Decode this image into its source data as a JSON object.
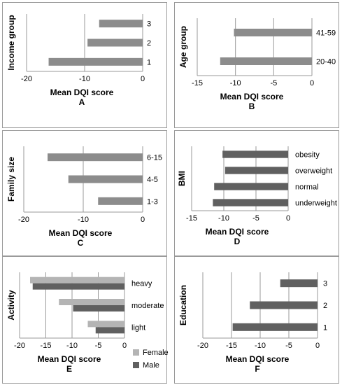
{
  "chart_data": [
    {
      "panel": "A",
      "type": "bar",
      "orientation": "horizontal",
      "ylabel": "Income group",
      "xlabel": "Mean DQI score",
      "categories": [
        "3",
        "2",
        "1"
      ],
      "series": [
        {
          "values": [
            -7.5,
            -9.5,
            -16.2
          ],
          "color": "#8c8c8c"
        }
      ],
      "xlim": [
        -20,
        0
      ],
      "xticks": [
        -20,
        -10,
        0
      ],
      "grid": "vertical"
    },
    {
      "panel": "B",
      "type": "bar",
      "orientation": "horizontal",
      "ylabel": "Age group",
      "xlabel": "Mean DQI score",
      "categories": [
        "41-59",
        "20-40"
      ],
      "series": [
        {
          "values": [
            -10.2,
            -12.0
          ],
          "color": "#8c8c8c"
        }
      ],
      "xlim": [
        -15,
        0
      ],
      "xticks": [
        -15,
        -10,
        -5,
        0
      ],
      "grid": "vertical"
    },
    {
      "panel": "C",
      "type": "bar",
      "orientation": "horizontal",
      "ylabel": "Family size",
      "xlabel": "Mean DQI score",
      "categories": [
        "6-15",
        "4-5",
        "1-3"
      ],
      "series": [
        {
          "values": [
            -16.0,
            -12.5,
            -7.5
          ],
          "color": "#8c8c8c"
        }
      ],
      "xlim": [
        -20,
        0
      ],
      "xticks": [
        -20,
        -10,
        0
      ],
      "grid": "vertical"
    },
    {
      "panel": "D",
      "type": "bar",
      "orientation": "horizontal",
      "ylabel": "BMI",
      "xlabel": "Mean DQI score",
      "categories": [
        "obesity",
        "overweight",
        "normal",
        "underweight"
      ],
      "series": [
        {
          "values": [
            -10.2,
            -9.8,
            -11.5,
            -11.7
          ],
          "color": "#606060"
        }
      ],
      "xlim": [
        -15,
        0
      ],
      "xticks": [
        -15,
        -10,
        -5,
        0
      ],
      "grid": "vertical"
    },
    {
      "panel": "E",
      "type": "bar",
      "orientation": "horizontal",
      "ylabel": "Activity",
      "xlabel": "Mean DQI score",
      "categories": [
        "heavy",
        "moderate",
        "light"
      ],
      "series": [
        {
          "name": "Female",
          "values": [
            -18.0,
            -12.5,
            -7.0
          ],
          "color": "#b4b4b4"
        },
        {
          "name": "Male",
          "values": [
            -17.5,
            -9.8,
            -5.5
          ],
          "color": "#606060"
        }
      ],
      "xlim": [
        -20,
        0
      ],
      "xticks": [
        -20,
        -15,
        -10,
        -5,
        0
      ],
      "grid": "vertical",
      "legend": "bottom-right"
    },
    {
      "panel": "F",
      "type": "bar",
      "orientation": "horizontal",
      "ylabel": "Education",
      "xlabel": "Mean DQI score",
      "categories": [
        "3",
        "2",
        "1"
      ],
      "series": [
        {
          "values": [
            -6.5,
            -11.8,
            -14.8
          ],
          "color": "#606060"
        }
      ],
      "xlim": [
        -20,
        0
      ],
      "xticks": [
        -20,
        -15,
        -10,
        -5,
        0
      ],
      "grid": "vertical"
    }
  ]
}
